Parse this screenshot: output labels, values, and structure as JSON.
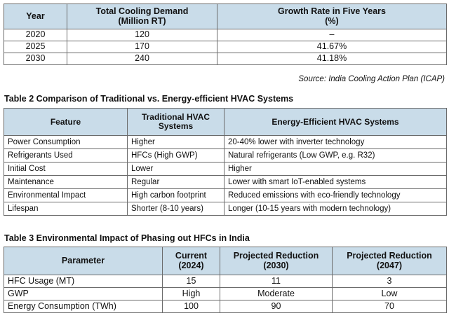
{
  "table1": {
    "headers": [
      "Year",
      "Total Cooling Demand",
      "(Million RT)",
      "Growth Rate in Five Years",
      "(%)"
    ],
    "rows": [
      [
        "2020",
        "120",
        "–"
      ],
      [
        "2025",
        "170",
        "41.67%"
      ],
      [
        "2030",
        "240",
        "41.18%"
      ]
    ],
    "source": "Source: India Cooling Action Plan (ICAP)"
  },
  "table2": {
    "caption": "Table 2  Comparison of Traditional vs. Energy-efficient HVAC Systems",
    "headers": [
      "Feature",
      "Traditional HVAC",
      "Systems",
      "Energy-Efficient HVAC Systems"
    ],
    "rows": [
      [
        "Power Consumption",
        "Higher",
        "20-40% lower with inverter technology"
      ],
      [
        "Refrigerants Used",
        "HFCs (High GWP)",
        "Natural refrigerants (Low GWP, e.g. R32)"
      ],
      [
        "Initial Cost",
        "Lower",
        "Higher"
      ],
      [
        "Maintenance",
        "Regular",
        "Lower with smart IoT-enabled systems"
      ],
      [
        "Environmental Impact",
        "High carbon footprint",
        "Reduced emissions with eco-friendly technology"
      ],
      [
        "Lifespan",
        "Shorter (8-10 years)",
        "Longer (10-15 years with modern technology)"
      ]
    ]
  },
  "table3": {
    "caption": "Table 3  Environmental Impact of Phasing out HFCs in India",
    "headers": [
      "Parameter",
      "Current",
      "(2024)",
      "Projected Reduction",
      "(2030)",
      "Projected Reduction",
      "(2047)"
    ],
    "rows": [
      [
        "HFC Usage (MT)",
        "15",
        "11",
        "3"
      ],
      [
        "GWP",
        "High",
        "Moderate",
        "Low"
      ],
      [
        "Energy Consumption (TWh)",
        "100",
        "90",
        "70"
      ]
    ]
  }
}
